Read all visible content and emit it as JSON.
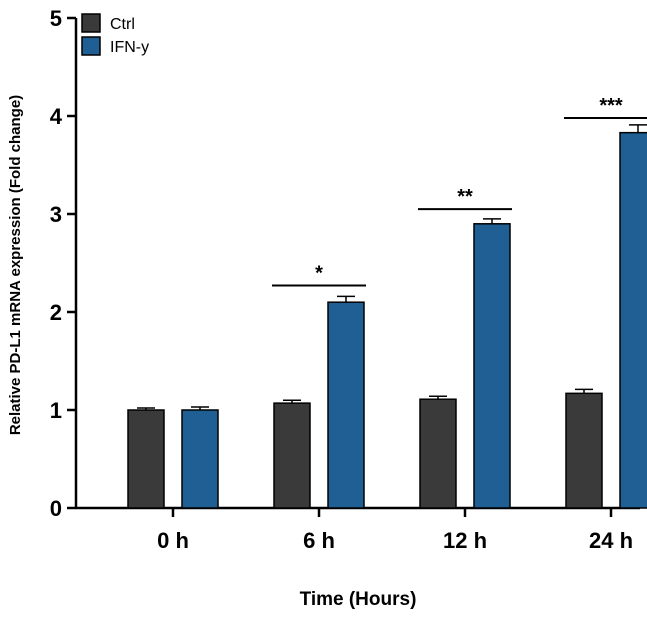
{
  "chart_data": {
    "type": "bar",
    "title": "",
    "xlabel": "Time (Hours)",
    "ylabel": "Relative PD-L1 mRNA expression (Fold change)",
    "ylim": [
      0,
      5
    ],
    "yticks": [
      "0",
      "1",
      "2",
      "3",
      "4",
      "5"
    ],
    "categories": [
      "0 h",
      "6 h",
      "12 h",
      "24 h"
    ],
    "series": [
      {
        "name": "Ctrl",
        "color": "#3a3a3a",
        "values": [
          1.0,
          1.07,
          1.11,
          1.17
        ],
        "errors": [
          0.02,
          0.03,
          0.03,
          0.04
        ]
      },
      {
        "name": "IFN-y",
        "color": "#1f5f94",
        "values": [
          1.0,
          2.1,
          2.9,
          3.83
        ],
        "errors": [
          0.03,
          0.06,
          0.05,
          0.08
        ]
      }
    ],
    "significance": [
      {
        "category": "6 h",
        "label": "*",
        "level": 2.27
      },
      {
        "category": "12 h",
        "label": "**",
        "level": 3.05
      },
      {
        "category": "24 h",
        "label": "***",
        "level": 3.98
      }
    ],
    "legend": {
      "position": "top-left",
      "entries": [
        "Ctrl",
        "IFN-y"
      ]
    }
  }
}
